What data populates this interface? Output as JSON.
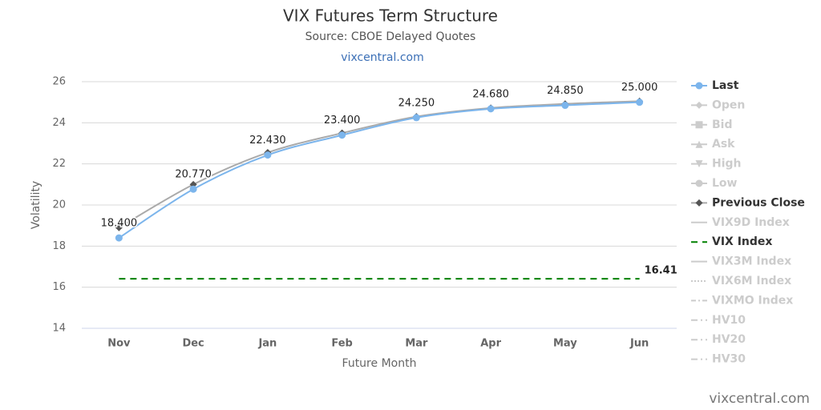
{
  "chart_data": {
    "type": "line",
    "title": "VIX Futures Term Structure",
    "subtitle": "Source: CBOE Delayed Quotes",
    "link": "vixcentral.com",
    "credits": "vixcentral.com",
    "x_label": "Future Month",
    "y_label": "Volatility",
    "categories": [
      "Nov",
      "Dec",
      "Jan",
      "Feb",
      "Mar",
      "Apr",
      "May",
      "Jun"
    ],
    "ylim": [
      14,
      26
    ],
    "yticks": [
      14,
      16,
      18,
      20,
      22,
      24,
      26
    ],
    "grid": true,
    "series": [
      {
        "name": "Last",
        "color": "#7cb5ec",
        "marker": "circle",
        "visible": true,
        "values": [
          18.4,
          20.77,
          22.43,
          23.4,
          24.25,
          24.68,
          24.85,
          25.0
        ],
        "value_labels": [
          "18.400",
          "20.770",
          "22.430",
          "23.400",
          "24.250",
          "24.680",
          "24.850",
          "25.000"
        ]
      },
      {
        "name": "Open",
        "color": "#cccccc",
        "marker": "diamond",
        "visible": false
      },
      {
        "name": "Bid",
        "color": "#cccccc",
        "marker": "square",
        "visible": false
      },
      {
        "name": "Ask",
        "color": "#cccccc",
        "marker": "triangle",
        "visible": false
      },
      {
        "name": "High",
        "color": "#cccccc",
        "marker": "triangle-down",
        "visible": false
      },
      {
        "name": "Low",
        "color": "#cccccc",
        "marker": "circle",
        "visible": false
      },
      {
        "name": "Previous Close",
        "color": "#aaaaaa",
        "marker_color": "#555555",
        "marker": "diamond",
        "visible": true,
        "values": [
          18.9,
          21.0,
          22.55,
          23.5,
          24.3,
          24.72,
          24.92,
          25.05
        ]
      },
      {
        "name": "VIX9D Index",
        "color": "#cccccc",
        "visible": false
      },
      {
        "name": "VIX Index",
        "color": "#008000",
        "dash": "8,6",
        "visible": true,
        "label_last": true,
        "values": [
          16.41,
          16.41,
          16.41,
          16.41,
          16.41,
          16.41,
          16.41,
          16.41
        ]
      },
      {
        "name": "VIX3M Index",
        "color": "#cccccc",
        "visible": false
      },
      {
        "name": "VIX6M Index",
        "color": "#cccccc",
        "dash": "2,2",
        "visible": false
      },
      {
        "name": "VIXMO Index",
        "color": "#cccccc",
        "dash": "6,3,2,3",
        "visible": false
      },
      {
        "name": "HV10",
        "color": "#cccccc",
        "dash": "8,4,2,4",
        "visible": false
      },
      {
        "name": "HV20",
        "color": "#cccccc",
        "dash": "8,4,2,4",
        "visible": false
      },
      {
        "name": "HV30",
        "color": "#cccccc",
        "dash": "8,4,2,4",
        "visible": false
      }
    ]
  }
}
